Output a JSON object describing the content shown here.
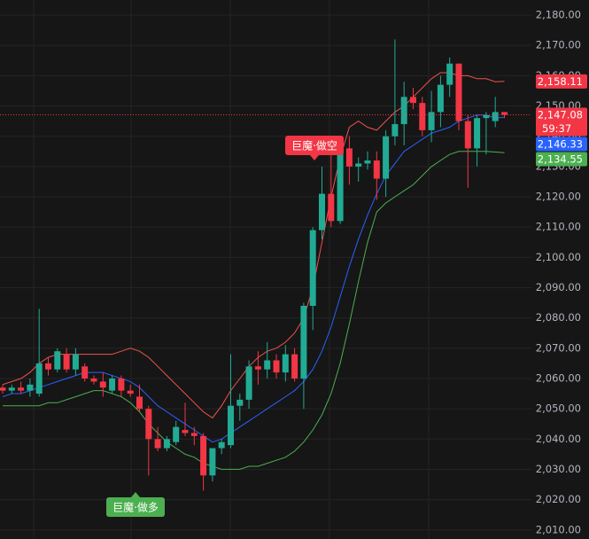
{
  "chart_data": {
    "type": "candlestick",
    "up_color": "#22ab94",
    "down_color": "#f23645",
    "ylim": [
      2007,
      2185
    ],
    "yticks": [
      {
        "value": 2010,
        "label": "2,010.00"
      },
      {
        "value": 2020,
        "label": "2,020.00"
      },
      {
        "value": 2030,
        "label": "2,030.00"
      },
      {
        "value": 2040,
        "label": "2,040.00"
      },
      {
        "value": 2050,
        "label": "2,050.00"
      },
      {
        "value": 2060,
        "label": "2,060.00"
      },
      {
        "value": 2070,
        "label": "2,070.00"
      },
      {
        "value": 2080,
        "label": "2,080.00"
      },
      {
        "value": 2090,
        "label": "2,090.00"
      },
      {
        "value": 2100,
        "label": "2,100.00"
      },
      {
        "value": 2110,
        "label": "2,110.00"
      },
      {
        "value": 2120,
        "label": "2,120.00"
      },
      {
        "value": 2130,
        "label": "2,130.00"
      },
      {
        "value": 2140,
        "label": "2,140.00"
      },
      {
        "value": 2150,
        "label": "2,150.00"
      },
      {
        "value": 2160,
        "label": "2,160.00"
      },
      {
        "value": 2170,
        "label": "2,170.00"
      },
      {
        "value": 2180,
        "label": "2,180.00"
      }
    ],
    "grid": true,
    "open": [
      2057,
      2056,
      2057,
      2056,
      2055,
      2065,
      2063,
      2068,
      2063,
      2064,
      2060,
      2059,
      2056,
      2060,
      2056,
      2054,
      2050,
      2040,
      2037,
      2039,
      2043,
      2042,
      2041,
      2028,
      2037,
      2038,
      2051,
      2053,
      2064,
      2063,
      2066,
      2062,
      2068,
      2060,
      2084,
      2109,
      2121,
      2112,
      2136,
      2130,
      2131,
      2132,
      2126,
      2140,
      2144,
      2153,
      2151,
      2142,
      2148,
      2157,
      2164,
      2145,
      2136,
      2146,
      2145,
      2148
    ],
    "high": [
      2058,
      2058,
      2059,
      2060,
      2083,
      2067,
      2070,
      2070,
      2070,
      2065,
      2061,
      2062,
      2061,
      2061,
      2058,
      2058,
      2051,
      2044,
      2041,
      2046,
      2052,
      2044,
      2042,
      2037,
      2040,
      2068,
      2055,
      2066,
      2069,
      2072,
      2068,
      2071,
      2070,
      2085,
      2110,
      2130,
      2137,
      2137,
      2140,
      2133,
      2135,
      2135,
      2142,
      2172,
      2158,
      2156,
      2153,
      2155,
      2160,
      2166,
      2164,
      2147,
      2147,
      2148,
      2153,
      2148
    ],
    "low": [
      2055,
      2055,
      2055,
      2054,
      2054,
      2061,
      2062,
      2062,
      2061,
      2059,
      2058,
      2054,
      2055,
      2054,
      2054,
      2049,
      2028,
      2036,
      2036,
      2038,
      2041,
      2038,
      2023,
      2026,
      2035,
      2037,
      2046,
      2050,
      2058,
      2060,
      2060,
      2059,
      2059,
      2050,
      2076,
      2106,
      2110,
      2111,
      2124,
      2125,
      2129,
      2119,
      2120,
      2137,
      2137,
      2149,
      2140,
      2138,
      2143,
      2153,
      2142,
      2123,
      2130,
      2134,
      2143,
      2146
    ],
    "close": [
      2056,
      2057,
      2056,
      2058,
      2065,
      2063,
      2069,
      2063,
      2068,
      2060,
      2059,
      2057,
      2060,
      2056,
      2055,
      2050,
      2040,
      2037,
      2040,
      2044,
      2042,
      2041,
      2028,
      2037,
      2039,
      2051,
      2053,
      2064,
      2063,
      2066,
      2062,
      2068,
      2060,
      2084,
      2109,
      2121,
      2112,
      2136,
      2130,
      2131,
      2132,
      2126,
      2140,
      2144,
      2153,
      2151,
      2142,
      2148,
      2157,
      2164,
      2145,
      2136,
      2146,
      2147,
      2148,
      2147.08
    ],
    "bands": [
      {
        "color": "#f0524f",
        "values": [
          2058,
          2059,
          2060,
          2062,
          2065,
          2067,
          2068,
          2068,
          2068,
          2068,
          2068,
          2068,
          2068,
          2069,
          2070,
          2069,
          2067,
          2064,
          2061,
          2058,
          2055,
          2052,
          2049,
          2047,
          2051,
          2056,
          2060,
          2064,
          2067,
          2069,
          2070,
          2072,
          2075,
          2080,
          2090,
          2105,
          2120,
          2133,
          2143,
          2145,
          2143,
          2142,
          2145,
          2148,
          2150,
          2153,
          2156,
          2159,
          2161,
          2161,
          2160,
          2160,
          2159,
          2159,
          2158,
          2158.11
        ]
      },
      {
        "color": "#2962ff",
        "values": [
          2054,
          2055,
          2055,
          2056,
          2057,
          2058,
          2059,
          2060,
          2061,
          2062,
          2062,
          2062,
          2061,
          2060,
          2059,
          2057,
          2054,
          2051,
          2049,
          2047,
          2045,
          2043,
          2041,
          2039,
          2040,
          2042,
          2044,
          2046,
          2048,
          2050,
          2052,
          2054,
          2056,
          2059,
          2063,
          2069,
          2077,
          2087,
          2097,
          2106,
          2114,
          2121,
          2127,
          2131,
          2135,
          2137,
          2139,
          2141,
          2142,
          2143,
          2145,
          2146,
          2147,
          2147,
          2146,
          2146.33
        ]
      },
      {
        "color": "#4caf50",
        "values": [
          2051,
          2051,
          2051,
          2051,
          2051,
          2052,
          2052,
          2053,
          2054,
          2055,
          2056,
          2056,
          2055,
          2054,
          2052,
          2049,
          2045,
          2042,
          2039,
          2037,
          2035,
          2034,
          2032,
          2031,
          2030,
          2030,
          2030,
          2031,
          2031,
          2032,
          2033,
          2034,
          2036,
          2039,
          2043,
          2048,
          2055,
          2065,
          2078,
          2092,
          2105,
          2115,
          2118,
          2120,
          2122,
          2124,
          2127,
          2130,
          2132,
          2134,
          2135,
          2135,
          2135,
          2135,
          2134.8,
          2134.55
        ]
      }
    ],
    "price_labels": [
      {
        "value": 2158.11,
        "label": "2,158.11",
        "color": "#f23645"
      },
      {
        "value": 2147.08,
        "label": "2,147.08",
        "color": "#f23645",
        "countdown": "59:37"
      },
      {
        "value": 2146.33,
        "label": "2,146.33",
        "color": "#2962ff"
      },
      {
        "value": 2134.55,
        "label": "2,134.55",
        "color": "#4caf50"
      }
    ],
    "annotations": [
      {
        "text": "巨魔·做空",
        "color": "#f23645"
      },
      {
        "text": "巨魔·做多",
        "color": "#4caf50"
      }
    ]
  }
}
